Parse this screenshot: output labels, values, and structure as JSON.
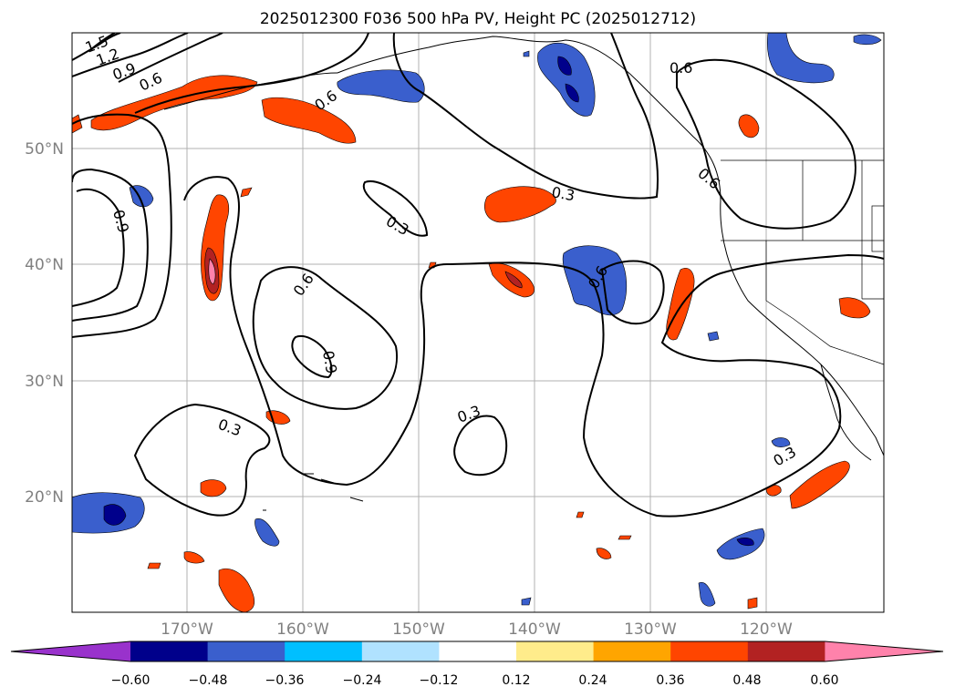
{
  "title": "2025012300 F036 500 hPa PV, Height PC (2025012712)",
  "lat_labels": [
    "50°N",
    "40°N",
    "30°N",
    "20°N"
  ],
  "lon_labels": [
    "170°W",
    "160°W",
    "150°W",
    "140°W",
    "130°W",
    "120°W"
  ],
  "colorbar": {
    "ticks": [
      "−0.60",
      "−0.48",
      "−0.36",
      "−0.24",
      "−0.12",
      "0.12",
      "0.24",
      "0.36",
      "0.48",
      "0.60"
    ],
    "colors": [
      "#9932cc",
      "#00008b",
      "#3a5fcd",
      "#00bfff",
      "#b0e2ff",
      "#ffffff",
      "#ffec8b",
      "#ffa500",
      "#ff4500",
      "#b22222",
      "#ff82ab"
    ]
  },
  "contour_labels": [
    "1.5",
    "1.2",
    "0.9",
    "0.6",
    "0.6",
    "0.9",
    "0.6",
    "0.3",
    "0.3",
    "0.6",
    "0.9",
    "0.3",
    "0.3",
    "0.6",
    "0.6",
    "0.3"
  ]
}
